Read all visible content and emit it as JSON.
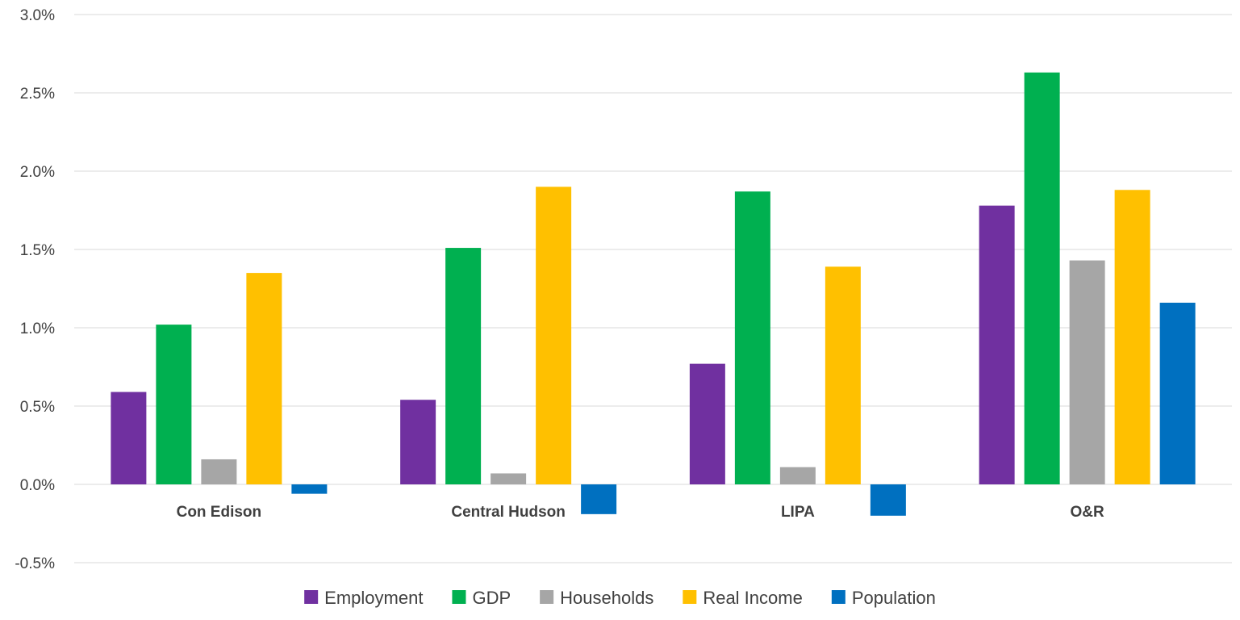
{
  "chart_data": {
    "type": "bar",
    "title": "",
    "xlabel": "",
    "ylabel": "",
    "ylim": [
      -0.5,
      3.0
    ],
    "y_ticks": [
      "3.0%",
      "2.5%",
      "2.0%",
      "1.5%",
      "1.0%",
      "0.5%",
      "0.0%",
      "-0.5%"
    ],
    "y_tick_values": [
      3.0,
      2.5,
      2.0,
      1.5,
      1.0,
      0.5,
      0.0,
      -0.5
    ],
    "y_unit": "%",
    "grid": true,
    "legend_position": "bottom",
    "categories": [
      "Con Edison",
      "Central Hudson",
      "LIPA",
      "O&R"
    ],
    "series": [
      {
        "name": "Employment",
        "color": "#7030a0",
        "values": [
          0.59,
          0.54,
          0.77,
          1.78
        ]
      },
      {
        "name": "GDP",
        "color": "#00b050",
        "values": [
          1.02,
          1.51,
          1.87,
          2.63
        ]
      },
      {
        "name": "Households",
        "color": "#a6a6a6",
        "values": [
          0.16,
          0.07,
          0.11,
          1.43
        ]
      },
      {
        "name": "Real Income",
        "color": "#ffc000",
        "values": [
          1.35,
          1.9,
          1.39,
          1.88
        ]
      },
      {
        "name": "Population",
        "color": "#0070c0",
        "values": [
          -0.06,
          -0.19,
          -0.2,
          1.16
        ]
      }
    ]
  }
}
